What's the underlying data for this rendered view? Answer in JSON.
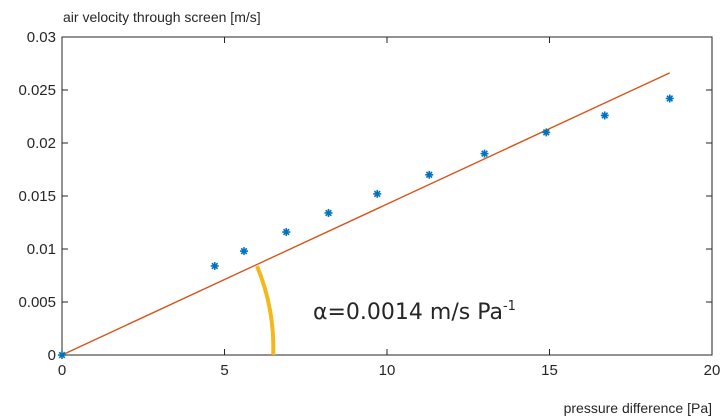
{
  "chart_data": {
    "type": "scatter",
    "ylabel": "air velocity through screen [m/s]",
    "xlabel": "pressure difference [Pa]",
    "xlim": [
      0,
      20
    ],
    "ylim": [
      0,
      0.03
    ],
    "xticks": [
      0,
      5,
      10,
      15,
      20
    ],
    "xtick_labels": [
      "0",
      "5",
      "10",
      "15",
      "20"
    ],
    "yticks": [
      0,
      0.005,
      0.01,
      0.015,
      0.02,
      0.025,
      0.03
    ],
    "ytick_labels": [
      "0",
      "0.005",
      "0.01",
      "0.015",
      "0.02",
      "0.025",
      "0.03"
    ],
    "grid": false,
    "series": [
      {
        "type": "scatter",
        "marker": "asterisk",
        "color": "#0072BD",
        "x": [
          0,
          4.7,
          5.6,
          6.9,
          8.2,
          9.7,
          11.3,
          13.0,
          14.9,
          16.7,
          18.7
        ],
        "y": [
          0,
          0.0084,
          0.0098,
          0.0116,
          0.0134,
          0.0152,
          0.017,
          0.019,
          0.021,
          0.0226,
          0.0242
        ]
      },
      {
        "type": "line",
        "color": "#D95319",
        "slope": 0.0014,
        "x": [
          0,
          18.7
        ],
        "y": [
          0,
          0.02662
        ]
      }
    ],
    "annotations": [
      {
        "text_main": "α=0.0014 m/s Pa",
        "text_sup": "-1",
        "arc_color": "#F5B81C"
      }
    ]
  }
}
